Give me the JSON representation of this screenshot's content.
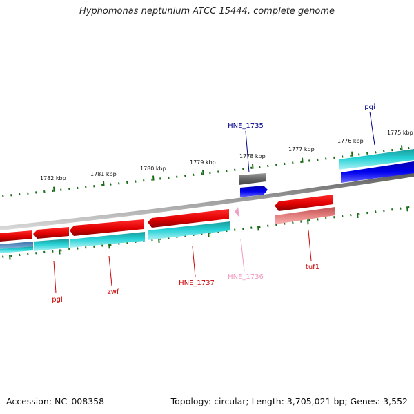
{
  "title": "Hyphomonas neptunium ATCC 15444, complete genome",
  "footer": {
    "accession": "Accession: NC_008358",
    "summary": "Topology: circular; Length: 3,705,021 bp; Genes: 3,552"
  },
  "scale_labels": [
    "1775 kbp",
    "1776 kbp",
    "1777 kbp",
    "1778 kbp",
    "1779 kbp",
    "1780 kbp",
    "1781 kbp",
    "1782 kbp"
  ],
  "gene_labels": {
    "hne1735": "HNE_1735",
    "pgi": "pgi",
    "pgl": "pgl",
    "zwf": "zwf",
    "hne1737": "HNE_1737",
    "hne1736": "HNE_1736",
    "tuf1": "tuf1"
  },
  "colors": {
    "backbone": "#8c8c8c",
    "tick": "#1a6e1a",
    "cds_red": "#ee0000",
    "cds_cyan": "#1cc8cc",
    "cds_blue": "#0000ee",
    "cds_gray": "#666666",
    "cds_pink": "#f0a0c0",
    "cds_lightred": "#e07070",
    "label_blue": "#00008b",
    "label_red": "#cc0000",
    "label_pink": "#f09ac0"
  }
}
